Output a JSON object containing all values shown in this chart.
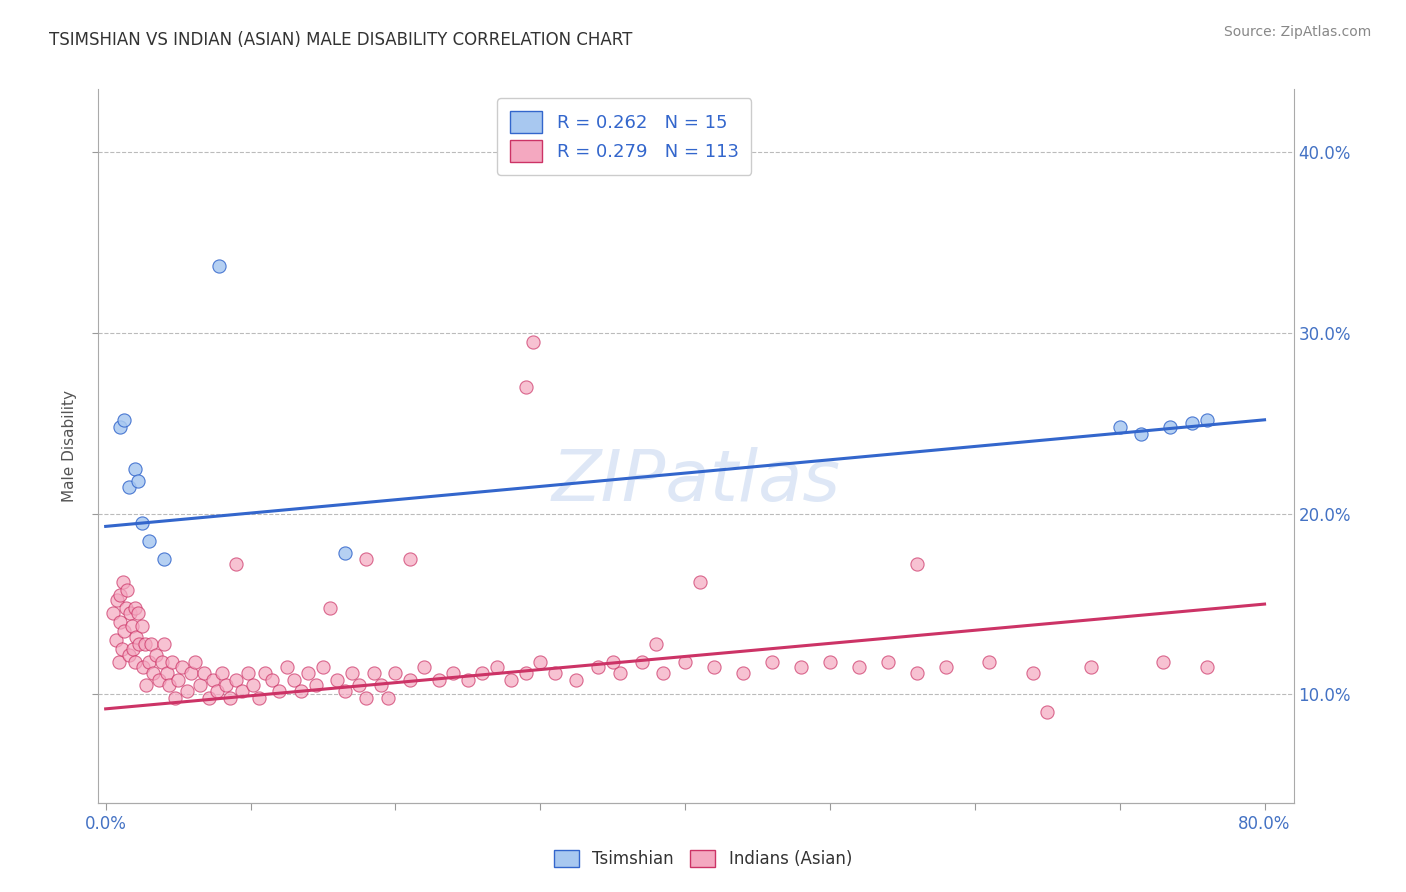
{
  "title": "TSIMSHIAN VS INDIAN (ASIAN) MALE DISABILITY CORRELATION CHART",
  "source": "Source: ZipAtlas.com",
  "ylabel": "Male Disability",
  "y_ticks": [
    0.1,
    0.2,
    0.3,
    0.4
  ],
  "y_tick_labels": [
    "10.0%",
    "20.0%",
    "30.0%",
    "40.0%"
  ],
  "xlim": [
    -0.005,
    0.82
  ],
  "ylim": [
    0.04,
    0.435
  ],
  "legend_r1": "R = 0.262",
  "legend_n1": "N = 15",
  "legend_r2": "R = 0.279",
  "legend_n2": "N = 113",
  "tsimshian_color": "#A8C8F0",
  "indian_color": "#F4A8C0",
  "trend_tsimshian_color": "#3366CC",
  "trend_indian_color": "#CC3366",
  "trend_blue_x0": 0.0,
  "trend_blue_y0": 0.193,
  "trend_blue_x1": 0.8,
  "trend_blue_y1": 0.252,
  "trend_pink_x0": 0.0,
  "trend_pink_y0": 0.092,
  "trend_pink_x1": 0.8,
  "trend_pink_y1": 0.15,
  "background_color": "#FFFFFF",
  "plot_bg_color": "#FFFFFF",
  "grid_color": "#BBBBBB",
  "watermark_color": "#C8D8F0",
  "tsimshian_x": [
    0.01,
    0.013,
    0.016,
    0.02,
    0.022,
    0.025,
    0.03,
    0.04,
    0.078,
    0.165,
    0.7,
    0.715,
    0.735,
    0.75,
    0.76
  ],
  "tsimshian_y": [
    0.248,
    0.252,
    0.215,
    0.225,
    0.218,
    0.195,
    0.185,
    0.175,
    0.337,
    0.178,
    0.248,
    0.244,
    0.248,
    0.25,
    0.252
  ],
  "indian_x": [
    0.005,
    0.007,
    0.008,
    0.009,
    0.01,
    0.01,
    0.011,
    0.012,
    0.013,
    0.014,
    0.015,
    0.016,
    0.017,
    0.018,
    0.019,
    0.02,
    0.02,
    0.021,
    0.022,
    0.023,
    0.025,
    0.026,
    0.027,
    0.028,
    0.03,
    0.031,
    0.033,
    0.035,
    0.037,
    0.039,
    0.04,
    0.042,
    0.044,
    0.046,
    0.048,
    0.05,
    0.053,
    0.056,
    0.059,
    0.062,
    0.065,
    0.068,
    0.071,
    0.074,
    0.077,
    0.08,
    0.083,
    0.086,
    0.09,
    0.094,
    0.098,
    0.102,
    0.106,
    0.11,
    0.115,
    0.12,
    0.125,
    0.13,
    0.135,
    0.14,
    0.145,
    0.15,
    0.16,
    0.165,
    0.17,
    0.175,
    0.18,
    0.185,
    0.19,
    0.195,
    0.2,
    0.21,
    0.22,
    0.23,
    0.24,
    0.25,
    0.26,
    0.27,
    0.28,
    0.29,
    0.3,
    0.31,
    0.325,
    0.34,
    0.355,
    0.37,
    0.385,
    0.4,
    0.42,
    0.44,
    0.46,
    0.48,
    0.5,
    0.52,
    0.54,
    0.56,
    0.58,
    0.61,
    0.64,
    0.68,
    0.295,
    0.29,
    0.56,
    0.65,
    0.73,
    0.76,
    0.18,
    0.35,
    0.41,
    0.38,
    0.155,
    0.09,
    0.21
  ],
  "indian_y": [
    0.145,
    0.13,
    0.152,
    0.118,
    0.14,
    0.155,
    0.125,
    0.162,
    0.135,
    0.148,
    0.158,
    0.122,
    0.145,
    0.138,
    0.125,
    0.148,
    0.118,
    0.132,
    0.145,
    0.128,
    0.138,
    0.115,
    0.128,
    0.105,
    0.118,
    0.128,
    0.112,
    0.122,
    0.108,
    0.118,
    0.128,
    0.112,
    0.105,
    0.118,
    0.098,
    0.108,
    0.115,
    0.102,
    0.112,
    0.118,
    0.105,
    0.112,
    0.098,
    0.108,
    0.102,
    0.112,
    0.105,
    0.098,
    0.108,
    0.102,
    0.112,
    0.105,
    0.098,
    0.112,
    0.108,
    0.102,
    0.115,
    0.108,
    0.102,
    0.112,
    0.105,
    0.115,
    0.108,
    0.102,
    0.112,
    0.105,
    0.098,
    0.112,
    0.105,
    0.098,
    0.112,
    0.108,
    0.115,
    0.108,
    0.112,
    0.108,
    0.112,
    0.115,
    0.108,
    0.112,
    0.118,
    0.112,
    0.108,
    0.115,
    0.112,
    0.118,
    0.112,
    0.118,
    0.115,
    0.112,
    0.118,
    0.115,
    0.118,
    0.115,
    0.118,
    0.112,
    0.115,
    0.118,
    0.112,
    0.115,
    0.295,
    0.27,
    0.172,
    0.09,
    0.118,
    0.115,
    0.175,
    0.118,
    0.162,
    0.128,
    0.148,
    0.172,
    0.175
  ]
}
